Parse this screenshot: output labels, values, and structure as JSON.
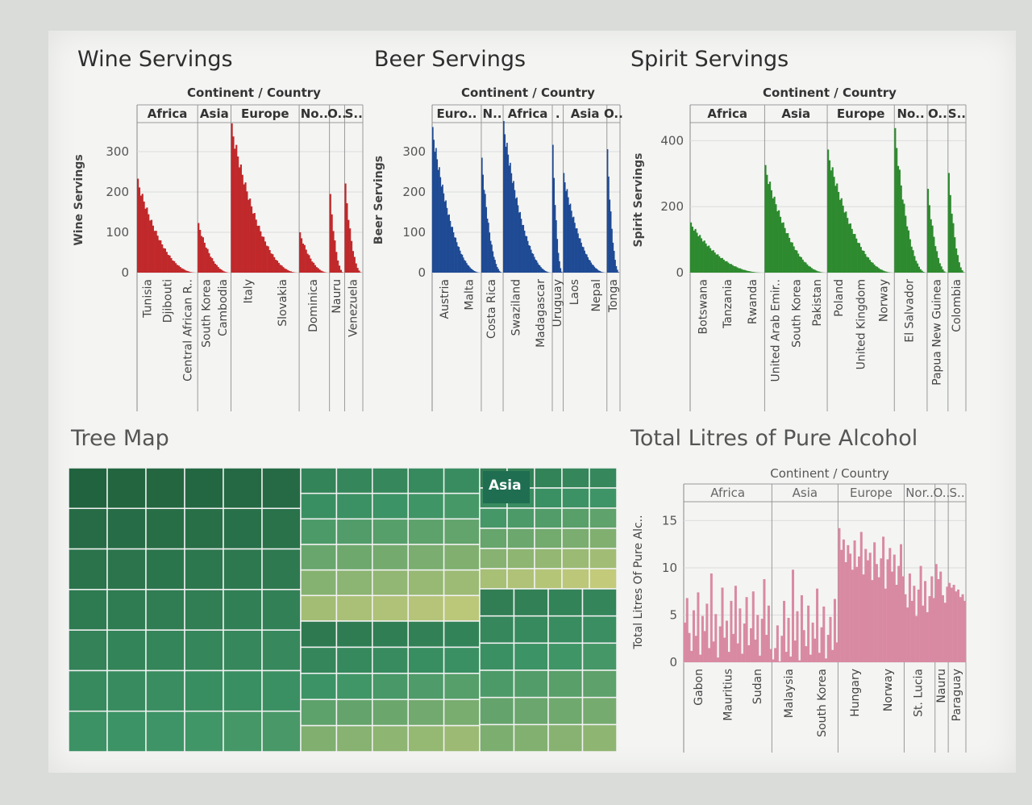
{
  "titles": {
    "wine": "Wine Servings",
    "beer": "Beer Servings",
    "spirit": "Spirit Servings",
    "tree": "Tree Map",
    "alcohol": "Total Litres of Pure Alcohol"
  },
  "header_label": "Continent / Country",
  "treemap_label": "Asia",
  "colors": {
    "wine": "#c0292b",
    "beer": "#1f4a94",
    "spirit": "#2e8a2f",
    "alcohol": "#d98aa3",
    "tree_dark": "#1e5e3a",
    "tree_mid": "#3d9466",
    "tree_light": "#cfcf7c"
  },
  "chart_data": [
    {
      "type": "bar",
      "title": "Wine Servings",
      "ylabel": "Wine Servings",
      "ylim": [
        0,
        360
      ],
      "yticks": [
        0,
        100,
        200,
        300
      ],
      "groups": [
        {
          "label": "Africa",
          "max": 233,
          "count": 40,
          "labels": [
            "Tunisia",
            "Djibouti",
            "Central African R.."
          ]
        },
        {
          "label": "Asia",
          "max": 123,
          "count": 22,
          "labels": [
            "South Korea",
            "Cambodia"
          ]
        },
        {
          "label": "Europe",
          "max": 370,
          "count": 45,
          "labels": [
            "Italy",
            "Slovakia"
          ]
        },
        {
          "label": "No..",
          "max": 100,
          "count": 20,
          "labels": [
            "Dominica"
          ]
        },
        {
          "label": "O..",
          "max": 195,
          "count": 10,
          "labels": [
            "Nauru"
          ]
        },
        {
          "label": "S..",
          "max": 221,
          "count": 12,
          "labels": [
            "Venezuela"
          ]
        }
      ]
    },
    {
      "type": "bar",
      "title": "Beer Servings",
      "ylabel": "Beer Servings",
      "ylim": [
        0,
        360
      ],
      "yticks": [
        0,
        100,
        200,
        300
      ],
      "groups": [
        {
          "label": "Euro..",
          "max": 361,
          "count": 45,
          "labels": [
            "Austria",
            "Malta"
          ]
        },
        {
          "label": "N..",
          "max": 285,
          "count": 20,
          "labels": [
            "Costa Rica"
          ]
        },
        {
          "label": "Africa",
          "max": 376,
          "count": 45,
          "labels": [
            "Swaziland",
            "Madagascar"
          ]
        },
        {
          "label": ".",
          "max": 317,
          "count": 10,
          "labels": [
            "Uruguay"
          ]
        },
        {
          "label": "Asia",
          "max": 247,
          "count": 40,
          "labels": [
            "Laos",
            "Nepal"
          ]
        },
        {
          "label": "O..",
          "max": 306,
          "count": 12,
          "labels": [
            "Tonga"
          ]
        }
      ]
    },
    {
      "type": "bar",
      "title": "Spirit Servings",
      "ylabel": "Spirit Servings",
      "ylim": [
        0,
        440
      ],
      "yticks": [
        0,
        200,
        400
      ],
      "groups": [
        {
          "label": "Africa",
          "max": 152,
          "count": 50,
          "labels": [
            "Botswana",
            "Tanzania",
            "Rwanda"
          ]
        },
        {
          "label": "Asia",
          "max": 326,
          "count": 42,
          "labels": [
            "United Arab Emir..",
            "South Korea",
            "Pakistan"
          ]
        },
        {
          "label": "Europe",
          "max": 373,
          "count": 45,
          "labels": [
            "Poland",
            "United Kingdom",
            "Norway"
          ]
        },
        {
          "label": "No..",
          "max": 438,
          "count": 22,
          "labels": [
            "El Salvador"
          ]
        },
        {
          "label": "O..",
          "max": 254,
          "count": 14,
          "labels": [
            "Papua New Guinea"
          ]
        },
        {
          "label": "S..",
          "max": 302,
          "count": 12,
          "labels": [
            "Colombia"
          ]
        }
      ]
    },
    {
      "type": "bar",
      "title": "Total Litres of Pure Alcohol",
      "ylabel": "Total Litres Of Pure Alc..",
      "ylim": [
        0,
        17
      ],
      "yticks": [
        0,
        5,
        10,
        15
      ],
      "groups": [
        {
          "label": "Africa",
          "labels": [
            "Gabon",
            "Mauritius",
            "Sudan"
          ],
          "values": [
            4.2,
            6.8,
            3.1,
            1.2,
            5.5,
            2.8,
            7.4,
            0.8,
            4.9,
            3.3,
            6.2,
            1.5,
            9.4,
            2.2,
            5.1,
            0.5,
            3.8,
            7.9,
            2.6,
            4.4,
            1.1,
            6.5,
            3.0,
            8.1,
            2.0,
            5.7,
            0.9,
            4.1,
            6.9,
            1.8,
            3.6,
            7.5,
            2.4,
            5.0,
            0.7,
            4.6,
            8.8,
            2.9,
            6.0,
            1.4
          ]
        },
        {
          "label": "Asia",
          "labels": [
            "Malaysia",
            "South Korea"
          ],
          "values": [
            0.3,
            1.5,
            3.9,
            0.1,
            2.8,
            6.5,
            1.1,
            4.7,
            0.6,
            9.8,
            2.3,
            5.4,
            0.2,
            7.1,
            3.4,
            1.7,
            6.0,
            0.8,
            4.2,
            2.5,
            7.8,
            1.0,
            3.7,
            5.9,
            0.4,
            2.9,
            4.8,
            1.3,
            6.7,
            2.1
          ]
        },
        {
          "label": "Europe",
          "labels": [
            "Hungary",
            "Norway"
          ],
          "values": [
            14.2,
            11.9,
            13.0,
            10.6,
            12.4,
            11.5,
            9.8,
            12.9,
            10.1,
            11.2,
            13.8,
            9.3,
            12.0,
            10.8,
            11.6,
            8.7,
            12.7,
            10.4,
            9.0,
            11.0,
            13.3,
            7.8,
            10.9,
            12.1,
            9.6,
            11.4,
            8.2,
            10.2,
            12.5,
            9.1
          ]
        },
        {
          "label": "Nor..",
          "labels": [
            "St. Lucia"
          ],
          "values": [
            7.2,
            5.8,
            9.4,
            6.5,
            8.1,
            4.9,
            7.7,
            10.2,
            6.0,
            8.6,
            5.3,
            7.0,
            9.1,
            6.8
          ]
        },
        {
          "label": "O..",
          "labels": [
            "Nauru"
          ],
          "values": [
            10.4,
            8.8,
            9.6,
            7.1,
            6.3,
            8.0
          ]
        },
        {
          "label": "S..",
          "labels": [
            "Paraguay"
          ],
          "values": [
            8.4,
            7.9,
            8.2,
            7.5,
            7.7,
            6.9,
            7.2,
            6.5
          ]
        }
      ]
    }
  ]
}
